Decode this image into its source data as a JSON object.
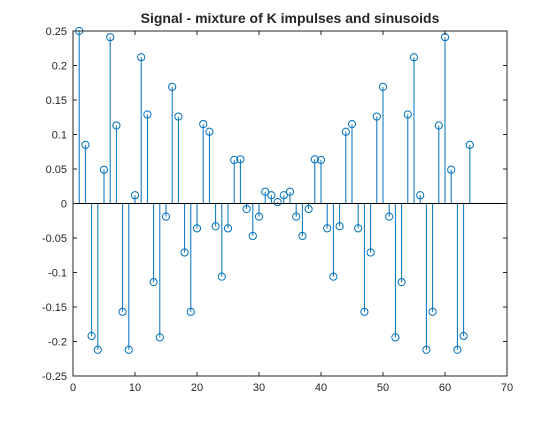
{
  "chart_data": {
    "type": "stem",
    "title": "Signal - mixture of K impulses and sinusoids",
    "xlabel": "",
    "ylabel": "",
    "xlim": [
      0,
      70
    ],
    "ylim": [
      -0.25,
      0.25
    ],
    "xticks": [
      0,
      10,
      20,
      30,
      40,
      50,
      60,
      70
    ],
    "yticks": [
      -0.25,
      -0.2,
      -0.15,
      -0.1,
      -0.05,
      0,
      0.05,
      0.1,
      0.15,
      0.2,
      0.25
    ],
    "xtick_labels": [
      "0",
      "10",
      "20",
      "30",
      "40",
      "50",
      "60",
      "70"
    ],
    "ytick_labels": [
      "-0.25",
      "-0.2",
      "-0.15",
      "-0.1",
      "-0.05",
      "0",
      "0.05",
      "0.1",
      "0.15",
      "0.2",
      "0.25"
    ],
    "grid": false,
    "series_color": "#0072BD",
    "series": [
      {
        "x": [
          1,
          2,
          3,
          4,
          5,
          6,
          7,
          8,
          9,
          10,
          11,
          12,
          13,
          14,
          15,
          16,
          17,
          18,
          19,
          20,
          21,
          22,
          23,
          24,
          25,
          26,
          27,
          28,
          29,
          30,
          31,
          32,
          33,
          34,
          35,
          36,
          37,
          38,
          39,
          40,
          41,
          42,
          43,
          44,
          45,
          46,
          47,
          48,
          49,
          50,
          51,
          52,
          53,
          54,
          55,
          56,
          57,
          58,
          59,
          60,
          61,
          62,
          63,
          64
        ],
        "values": [
          0.25,
          0.085,
          -0.192,
          -0.212,
          0.049,
          0.241,
          0.113,
          -0.157,
          -0.212,
          0.012,
          0.212,
          0.129,
          -0.114,
          -0.194,
          -0.019,
          0.169,
          0.126,
          -0.071,
          -0.157,
          -0.036,
          0.115,
          0.104,
          -0.033,
          -0.106,
          -0.036,
          0.063,
          0.064,
          -0.008,
          -0.047,
          -0.019,
          0.017,
          0.012,
          0.002,
          0.012,
          0.017,
          -0.019,
          -0.047,
          -0.008,
          0.064,
          0.063,
          -0.036,
          -0.106,
          -0.033,
          0.104,
          0.115,
          -0.036,
          -0.157,
          -0.071,
          0.126,
          0.169,
          -0.019,
          -0.194,
          -0.114,
          0.129,
          0.212,
          0.012,
          -0.212,
          -0.157,
          0.113,
          0.241,
          0.049,
          -0.212,
          -0.192,
          0.085
        ]
      }
    ]
  }
}
